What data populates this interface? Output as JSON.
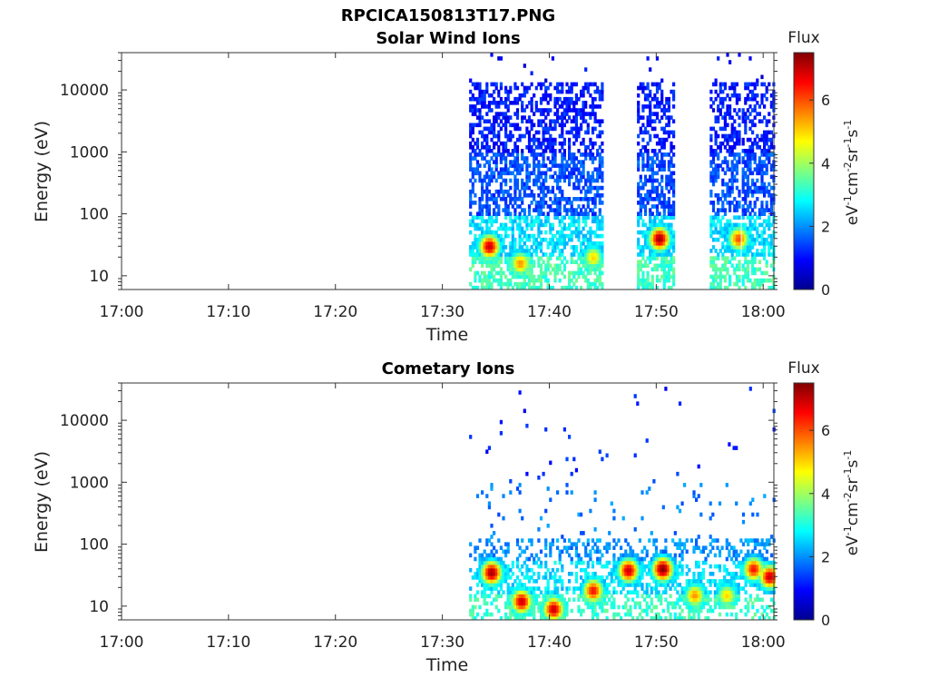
{
  "figure_title": "RPCICA150813T17.PNG",
  "chart_data": [
    {
      "type": "heatmap",
      "title": "Solar Wind Ions",
      "xlabel": "Time",
      "ylabel": "Energy (eV)",
      "x_tick_labels": [
        "17:00",
        "17:10",
        "17:20",
        "17:30",
        "17:40",
        "17:50",
        "18:00"
      ],
      "x_ticks_minutes": [
        0,
        10,
        20,
        30,
        40,
        50,
        60
      ],
      "xlim_minutes": [
        0,
        61
      ],
      "y_scale": "log",
      "y_tick_labels": [
        "10",
        "100",
        "1000",
        "10000"
      ],
      "y_ticks": [
        10,
        100,
        1000,
        10000
      ],
      "ylim": [
        6,
        40000
      ],
      "colorbar": {
        "label": "Flux",
        "units": "eV-1cm-2sr-1s-1",
        "range": [
          0,
          7.5
        ],
        "tick_labels": [
          "0",
          "2",
          "4",
          "6"
        ],
        "ticks": [
          0,
          2,
          4,
          6
        ]
      },
      "segments_minutes": [
        [
          32.5,
          45.0
        ],
        [
          48.2,
          51.5
        ],
        [
          55.0,
          57.8
        ],
        [
          58.0,
          61.0
        ]
      ],
      "peaks": [
        {
          "time_min": 34.3,
          "energy_ev": 30,
          "flux": 7.0
        },
        {
          "time_min": 37.2,
          "energy_ev": 16,
          "flux": 5.5
        },
        {
          "time_min": 44.0,
          "energy_ev": 20,
          "flux": 5.0
        },
        {
          "time_min": 50.2,
          "energy_ev": 40,
          "flux": 7.3
        },
        {
          "time_min": 57.6,
          "energy_ev": 40,
          "flux": 6.0
        }
      ]
    },
    {
      "type": "heatmap",
      "title": "Cometary Ions",
      "xlabel": "Time",
      "ylabel": "Energy (eV)",
      "x_tick_labels": [
        "17:00",
        "17:10",
        "17:20",
        "17:30",
        "17:40",
        "17:50",
        "18:00"
      ],
      "x_ticks_minutes": [
        0,
        10,
        20,
        30,
        40,
        50,
        60
      ],
      "xlim_minutes": [
        0,
        61
      ],
      "y_scale": "log",
      "y_tick_labels": [
        "10",
        "100",
        "1000",
        "10000"
      ],
      "y_ticks": [
        10,
        100,
        1000,
        10000
      ],
      "ylim": [
        6,
        40000
      ],
      "colorbar": {
        "label": "Flux",
        "units": "eV-1cm-2sr-1s-1",
        "range": [
          0,
          7.5
        ],
        "tick_labels": [
          "0",
          "2",
          "4",
          "6"
        ],
        "ticks": [
          0,
          2,
          4,
          6
        ]
      },
      "segments_minutes": [
        [
          32.5,
          61.0
        ]
      ],
      "peaks": [
        {
          "time_min": 34.5,
          "energy_ev": 35,
          "flux": 7.3
        },
        {
          "time_min": 37.3,
          "energy_ev": 12,
          "flux": 7.0
        },
        {
          "time_min": 40.3,
          "energy_ev": 9,
          "flux": 7.0
        },
        {
          "time_min": 44.0,
          "energy_ev": 18,
          "flux": 6.5
        },
        {
          "time_min": 47.3,
          "energy_ev": 38,
          "flux": 7.0
        },
        {
          "time_min": 50.5,
          "energy_ev": 40,
          "flux": 7.5
        },
        {
          "time_min": 53.5,
          "energy_ev": 15,
          "flux": 5.5
        },
        {
          "time_min": 56.5,
          "energy_ev": 15,
          "flux": 5.0
        },
        {
          "time_min": 59.0,
          "energy_ev": 40,
          "flux": 6.5
        },
        {
          "time_min": 60.5,
          "energy_ev": 30,
          "flux": 7.0
        }
      ]
    }
  ]
}
